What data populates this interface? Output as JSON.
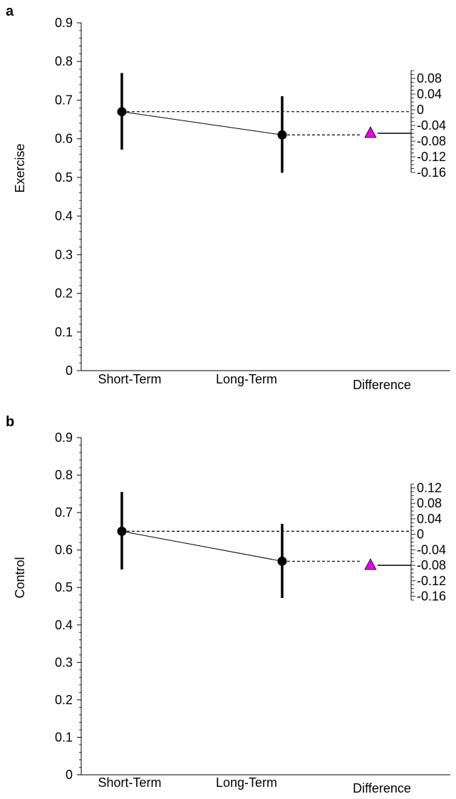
{
  "chart_data": [
    {
      "type": "scatter",
      "panel_label": "a",
      "ylabel": "Exercise",
      "categories": [
        "Short-Term",
        "Long-Term",
        "Difference"
      ],
      "ylim": [
        0,
        0.9
      ],
      "y_ticks": [
        "0",
        "0.1",
        "0.2",
        "0.3",
        "0.4",
        "0.5",
        "0.6",
        "0.7",
        "0.8",
        "0.9"
      ],
      "series": [
        {
          "points": [
            {
              "category": "Short-Term",
              "mean": 0.67,
              "ci_low": 0.572,
              "ci_high": 0.77
            },
            {
              "category": "Long-Term",
              "mean": 0.61,
              "ci_low": 0.512,
              "ci_high": 0.71
            }
          ]
        }
      ],
      "difference": {
        "value": -0.06,
        "axis_range": [
          -0.16,
          0.1
        ],
        "tick_labels": [
          "0.08",
          "0.04",
          "0",
          "-0.04",
          "-0.08",
          "-0.12",
          "-0.16"
        ],
        "marker_color": "#e600e6"
      },
      "grid": false,
      "legend": "none"
    },
    {
      "type": "scatter",
      "panel_label": "b",
      "ylabel": "Control",
      "categories": [
        "Short-Term",
        "Long-Term",
        "Difference"
      ],
      "ylim": [
        0,
        0.9
      ],
      "y_ticks": [
        "0",
        "0.1",
        "0.2",
        "0.3",
        "0.4",
        "0.5",
        "0.6",
        "0.7",
        "0.8",
        "0.9"
      ],
      "series": [
        {
          "points": [
            {
              "category": "Short-Term",
              "mean": 0.65,
              "ci_low": 0.548,
              "ci_high": 0.755
            },
            {
              "category": "Long-Term",
              "mean": 0.57,
              "ci_low": 0.472,
              "ci_high": 0.67
            }
          ]
        }
      ],
      "difference": {
        "value": -0.08,
        "axis_range": [
          -0.17,
          0.13
        ],
        "tick_labels": [
          "0.12",
          "0.08",
          "0.04",
          "0",
          "-0.04",
          "-0.08",
          "-0.12",
          "-0.16"
        ],
        "marker_color": "#e600e6"
      },
      "grid": false,
      "legend": "none"
    }
  ]
}
